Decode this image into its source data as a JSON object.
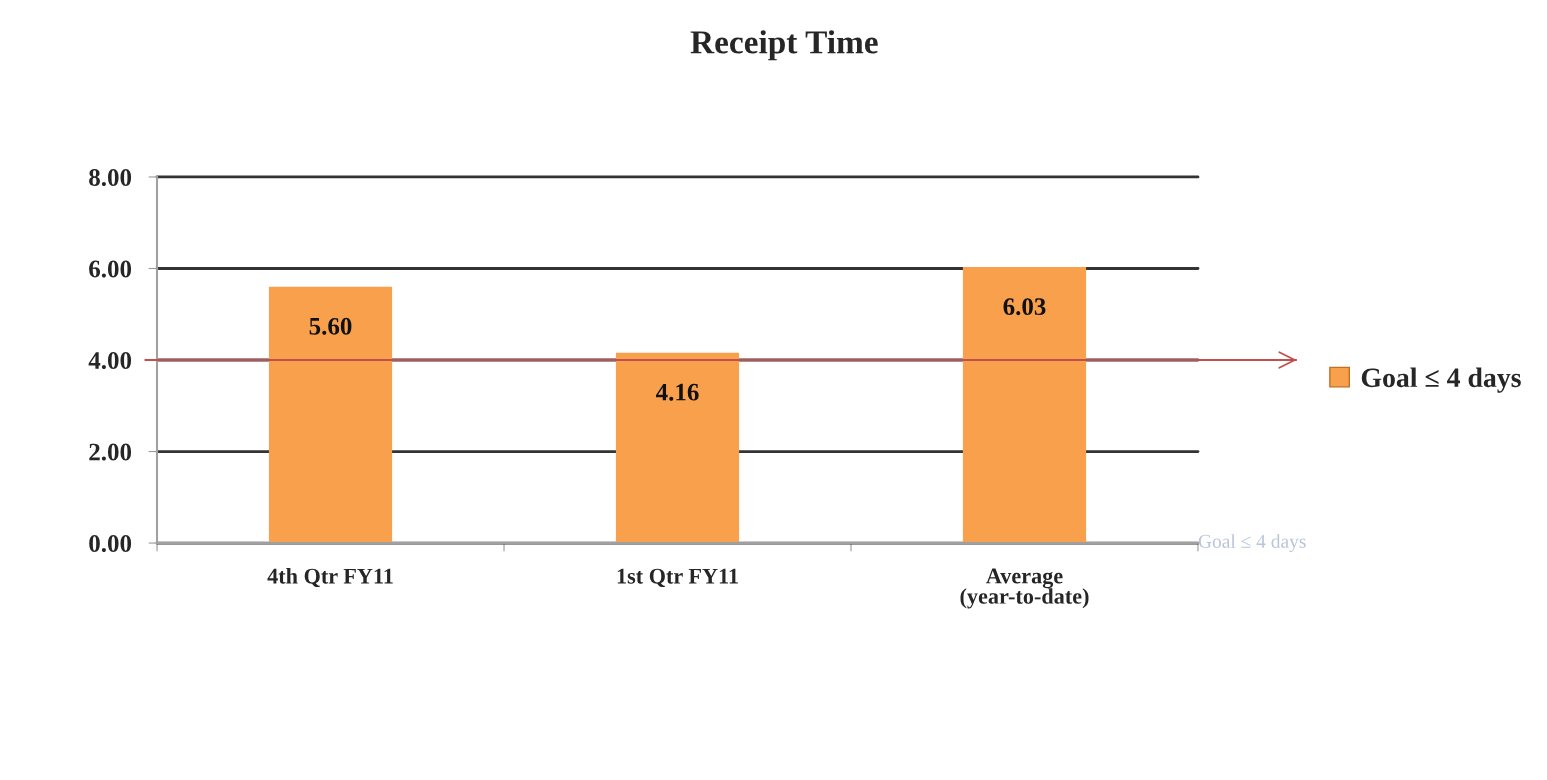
{
  "chart_data": {
    "type": "bar",
    "title": "Receipt Time",
    "categories": [
      "4th Qtr FY11",
      "1st Qtr FY11",
      "Average\n(year-to-date)"
    ],
    "series": [
      {
        "name": "Goal ≤ 4 days",
        "color": "#f9a04d",
        "values": [
          5.6,
          4.16,
          6.03
        ],
        "value_labels": [
          "5.60",
          "4.16",
          "6.03"
        ]
      }
    ],
    "ylim": [
      0,
      8
    ],
    "yticks": [
      {
        "value": 0,
        "label": "0.00"
      },
      {
        "value": 2,
        "label": "2.00"
      },
      {
        "value": 4,
        "label": "4.00"
      },
      {
        "value": 6,
        "label": "6.00"
      },
      {
        "value": 8,
        "label": "8.00"
      }
    ],
    "grid": "y",
    "legend": "right",
    "ref_lines": [
      {
        "axis": "y",
        "value": 4,
        "color": "#c0504d"
      }
    ],
    "annotations": [
      "Goal ≤ 4 days"
    ]
  }
}
